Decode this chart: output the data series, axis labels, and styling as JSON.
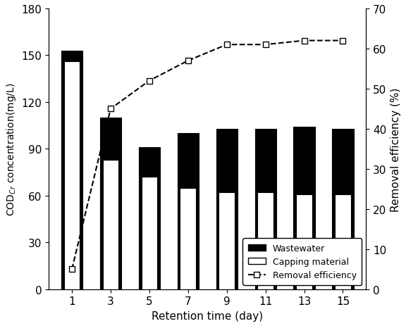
{
  "days": [
    1,
    3,
    5,
    7,
    9,
    11,
    13,
    15
  ],
  "wastewater": [
    153,
    110,
    91,
    100,
    103,
    103,
    104,
    103
  ],
  "capping": [
    146,
    83,
    72,
    65,
    62,
    62,
    61,
    61
  ],
  "removal_efficiency": [
    5,
    45,
    52,
    57,
    61,
    61,
    62,
    62
  ],
  "ylim_left": [
    0,
    180
  ],
  "ylim_right": [
    0,
    70
  ],
  "yticks_left": [
    0,
    30,
    60,
    90,
    120,
    150,
    180
  ],
  "yticks_right": [
    0,
    10,
    20,
    30,
    40,
    50,
    60,
    70
  ],
  "xlabel": "Retention time (day)",
  "ylabel_left": "COD$_{Cr}$ concentration(mg/L)",
  "ylabel_right": "Removal efficiency (%)",
  "legend_wastewater": "Wastewater",
  "legend_capping": "Capping material",
  "legend_removal": "Removal efficiency",
  "bar_width": 0.55,
  "bg_color": "#ffffff",
  "wastewater_color": "#000000",
  "capping_color": "#ffffff",
  "line_color": "#000000"
}
